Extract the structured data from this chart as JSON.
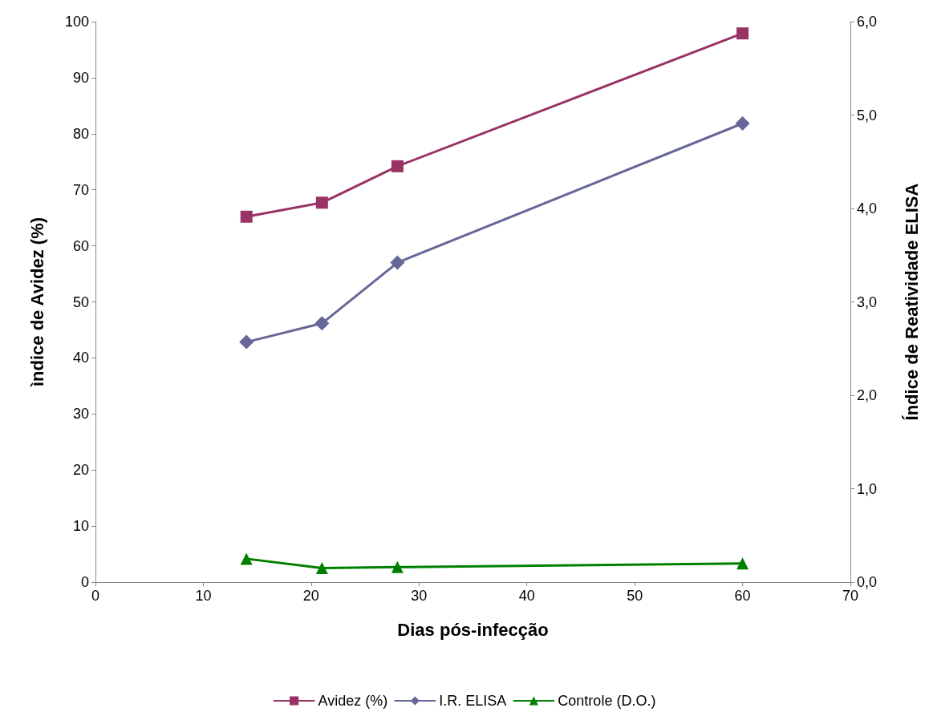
{
  "chart_data": {
    "type": "line",
    "xlabel": "Dias pós-infecção",
    "ylabel": "ìndice de Avidez (%)",
    "y2label": "Índice de Reatividade ELISA",
    "x": [
      14,
      21,
      28,
      60
    ],
    "series": [
      {
        "name": "Avidez (%)",
        "color": "#993366",
        "marker": "square",
        "values": [
          65.2,
          67.7,
          74.2,
          97.9
        ]
      },
      {
        "name": "I.R. ELISA",
        "color": "#666699",
        "marker": "diamond",
        "axis": "y2",
        "values": [
          2.57,
          2.77,
          3.42,
          4.91
        ]
      },
      {
        "name": "Controle (D.O.)",
        "color": "#008000",
        "marker": "triangle",
        "axis": "y2",
        "values": [
          0.25,
          0.15,
          0.16,
          0.2
        ]
      }
    ],
    "xlim": [
      0,
      70
    ],
    "xticks": [
      0,
      10,
      20,
      30,
      40,
      50,
      60,
      70
    ],
    "ylim": [
      0,
      100
    ],
    "yticks": [
      0,
      10,
      20,
      30,
      40,
      50,
      60,
      70,
      80,
      90,
      100
    ],
    "y2lim": [
      0,
      6
    ],
    "y2ticks": [
      {
        "value": 0,
        "label": "0,0"
      },
      {
        "value": 1,
        "label": "1,0"
      },
      {
        "value": 2,
        "label": "2,0"
      },
      {
        "value": 3,
        "label": "3,0"
      },
      {
        "value": 4,
        "label": "4,0"
      },
      {
        "value": 5,
        "label": "5,0"
      },
      {
        "value": 6,
        "label": "6,0"
      }
    ],
    "grid": false,
    "legend": "bottom",
    "line_style": "solid"
  }
}
